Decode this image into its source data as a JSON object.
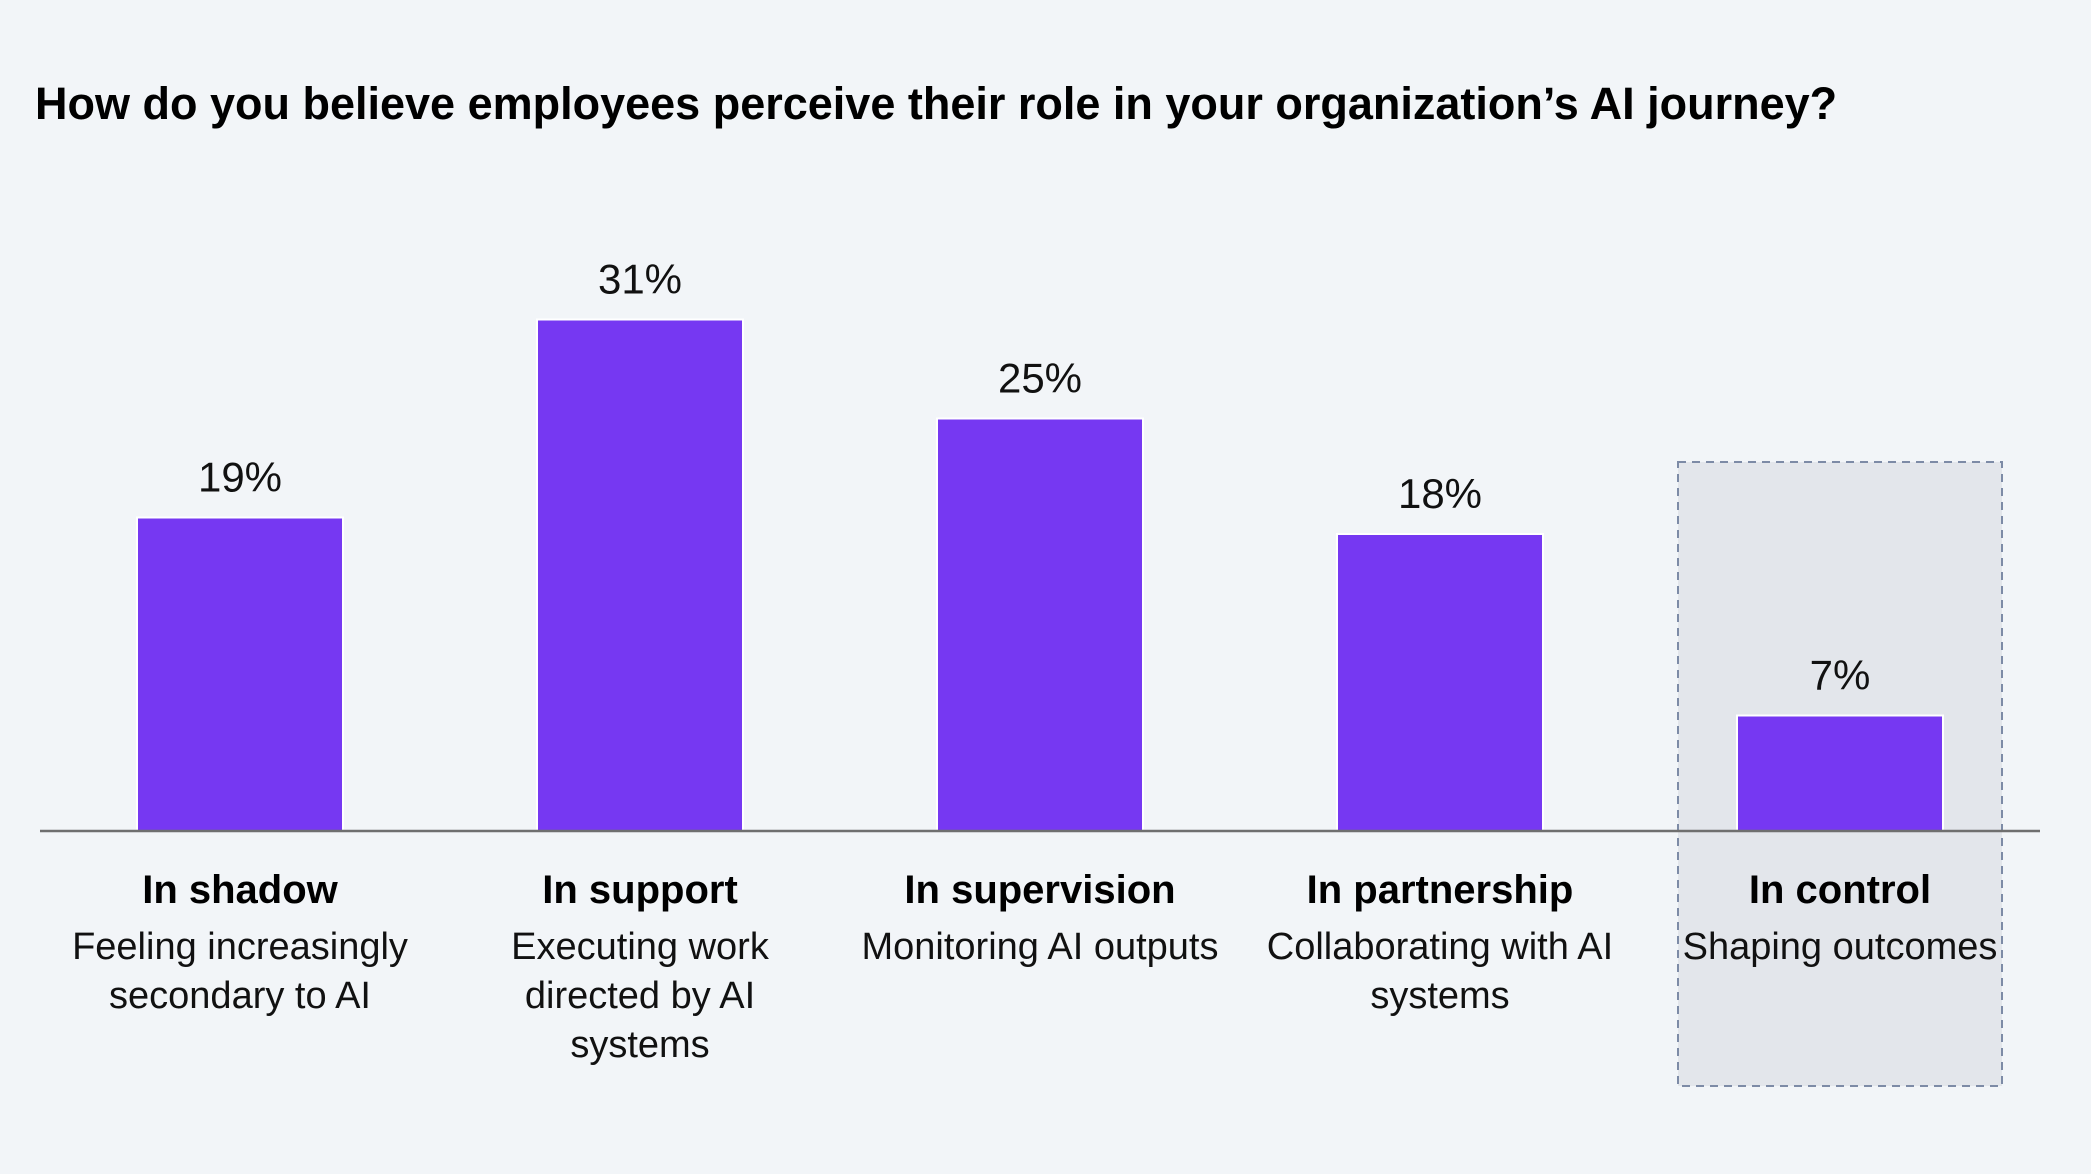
{
  "title": "How do you believe employees perceive their role in your organization’s AI journey?",
  "colors": {
    "bar": "#7638f2",
    "background": "#f2f5f8",
    "highlight_box": "#e3e6eb",
    "highlight_border": "#7d8ba6",
    "axis": "#6f6f6f"
  },
  "chart_data": {
    "type": "bar",
    "title": "How do you believe employees perceive their role in your organization’s AI journey?",
    "categories": [
      "In shadow",
      "In support",
      "In supervision",
      "In partnership",
      "In control"
    ],
    "descriptions": [
      "Feeling increasingly secondary to AI",
      "Executing work directed by AI systems",
      "Monitoring AI outputs",
      "Collaborating with AI systems",
      "Shaping outcomes"
    ],
    "values": [
      19,
      31,
      25,
      18,
      7
    ],
    "data_labels": [
      "19%",
      "31%",
      "25%",
      "18%",
      "7%"
    ],
    "unit": "%",
    "highlighted_category": "In control",
    "xlabel": "",
    "ylabel": "",
    "ylim": [
      0,
      31
    ],
    "grid": false,
    "legend": "none"
  }
}
